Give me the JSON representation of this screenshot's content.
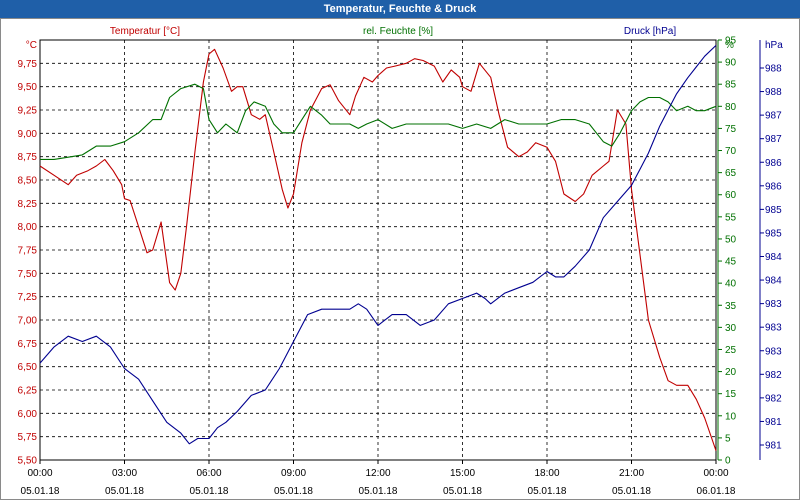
{
  "window": {
    "title": "Temperatur, Feuchte & Druck"
  },
  "chart_data": {
    "type": "line",
    "title": "Temperatur, Feuchte & Druck",
    "grid": true,
    "x": {
      "ticks": [
        {
          "time": "00:00",
          "date": "05.01.18"
        },
        {
          "time": "03:00",
          "date": "05.01.18"
        },
        {
          "time": "06:00",
          "date": "05.01.18"
        },
        {
          "time": "09:00",
          "date": "05.01.18"
        },
        {
          "time": "12:00",
          "date": "05.01.18"
        },
        {
          "time": "15:00",
          "date": "05.01.18"
        },
        {
          "time": "18:00",
          "date": "05.01.18"
        },
        {
          "time": "21:00",
          "date": "05.01.18"
        },
        {
          "time": "00:00",
          "date": "06.01.18"
        }
      ],
      "range_hours": [
        0,
        24
      ]
    },
    "axes": {
      "temperature": {
        "label": "Temperatur [°C]",
        "unit": "°C",
        "color": "#c00000",
        "range": [
          5.5,
          10.0
        ],
        "tick_labels": [
          "5,50",
          "5,75",
          "6,00",
          "6,25",
          "6,50",
          "6,75",
          "7,00",
          "7,25",
          "7,50",
          "7,75",
          "8,00",
          "8,25",
          "8,50",
          "8,75",
          "9,00",
          "9,25",
          "9,50",
          "9,75"
        ]
      },
      "humidity": {
        "label": "rel. Feuchte [%]",
        "unit": "%",
        "color": "#007000",
        "range": [
          0,
          95
        ],
        "tick_labels": [
          "0",
          "5",
          "10",
          "15",
          "20",
          "25",
          "30",
          "35",
          "40",
          "45",
          "50",
          "55",
          "60",
          "65",
          "70",
          "75",
          "80",
          "85",
          "90",
          "95"
        ]
      },
      "pressure": {
        "label": "Druck [hPa]",
        "unit": "hPa",
        "color": "#000090",
        "range": [
          980.5,
          988.3
        ],
        "tick_labels": [
          "981",
          "981",
          "982",
          "982",
          "983",
          "983",
          "983",
          "984",
          "984",
          "985",
          "985",
          "986",
          "986",
          "987",
          "987",
          "988",
          "988"
        ]
      }
    },
    "series": [
      {
        "name": "Temperatur [°C]",
        "axis": "temperature",
        "color": "#c00000",
        "x_hours": [
          0,
          0.5,
          1,
          1.3,
          1.7,
          2,
          2.3,
          2.6,
          2.9,
          3,
          3.2,
          3.5,
          3.8,
          4,
          4.3,
          4.6,
          4.8,
          5,
          5.2,
          5.5,
          5.8,
          6,
          6.2,
          6.5,
          6.8,
          7,
          7.2,
          7.5,
          7.8,
          8,
          8.3,
          8.6,
          8.8,
          9,
          9.3,
          9.6,
          10,
          10.3,
          10.6,
          11,
          11.2,
          11.5,
          11.8,
          12,
          12.3,
          12.6,
          13,
          13.3,
          13.6,
          14,
          14.3,
          14.6,
          14.9,
          15,
          15.3,
          15.6,
          16,
          16.3,
          16.6,
          17,
          17.3,
          17.6,
          18,
          18.3,
          18.6,
          19,
          19.3,
          19.6,
          20,
          20.2,
          20.5,
          20.8,
          21,
          21.3,
          21.6,
          22,
          22.3,
          22.6,
          23,
          23.3,
          23.6,
          24
        ],
        "values": [
          8.65,
          8.55,
          8.45,
          8.55,
          8.6,
          8.65,
          8.72,
          8.6,
          8.45,
          8.3,
          8.28,
          8.0,
          7.72,
          7.75,
          8.05,
          7.4,
          7.32,
          7.5,
          8.0,
          8.8,
          9.55,
          9.85,
          9.9,
          9.7,
          9.45,
          9.5,
          9.5,
          9.2,
          9.15,
          9.2,
          8.8,
          8.4,
          8.2,
          8.35,
          8.9,
          9.25,
          9.48,
          9.52,
          9.35,
          9.2,
          9.4,
          9.6,
          9.55,
          9.62,
          9.7,
          9.72,
          9.75,
          9.8,
          9.78,
          9.72,
          9.55,
          9.68,
          9.6,
          9.5,
          9.45,
          9.75,
          9.6,
          9.2,
          8.85,
          8.75,
          8.8,
          8.9,
          8.85,
          8.7,
          8.35,
          8.27,
          8.35,
          8.55,
          8.65,
          8.7,
          9.25,
          9.1,
          8.4,
          7.7,
          7.0,
          6.6,
          6.35,
          6.3,
          6.3,
          6.15,
          5.95,
          5.6
        ]
      },
      {
        "name": "rel. Feuchte [%]",
        "axis": "humidity",
        "color": "#007000",
        "x_hours": [
          0,
          0.5,
          1,
          1.5,
          2,
          2.5,
          3,
          3.5,
          4,
          4.3,
          4.6,
          5,
          5.5,
          5.8,
          6,
          6.3,
          6.6,
          7,
          7.3,
          7.6,
          8,
          8.3,
          8.6,
          9,
          9.3,
          9.6,
          10,
          10.3,
          10.6,
          11,
          11.3,
          11.6,
          12,
          12.5,
          13,
          13.5,
          14,
          14.5,
          15,
          15.5,
          16,
          16.5,
          17,
          17.5,
          18,
          18.5,
          19,
          19.5,
          20,
          20.3,
          20.6,
          21,
          21.3,
          21.6,
          22,
          22.3,
          22.6,
          23,
          23.3,
          23.6,
          24
        ],
        "values": [
          68,
          68,
          68.5,
          69,
          71,
          71,
          72,
          74,
          77,
          77,
          82,
          84,
          85,
          84,
          77,
          74,
          76,
          74,
          79,
          81,
          80,
          76,
          74,
          74,
          77,
          80,
          78,
          76,
          76,
          76,
          75,
          76,
          77,
          75,
          76,
          76,
          76,
          76,
          75,
          76,
          75,
          77,
          76,
          76,
          76,
          77,
          77,
          76,
          72,
          71,
          74,
          79,
          81,
          82,
          82,
          81,
          79,
          80,
          79,
          79,
          80
        ]
      },
      {
        "name": "Druck [hPa]",
        "axis": "pressure",
        "color": "#000090",
        "x_hours": [
          0,
          0.5,
          1,
          1.5,
          2,
          2.5,
          3,
          3.5,
          4,
          4.5,
          5,
          5.3,
          5.6,
          6,
          6.3,
          6.6,
          7,
          7.5,
          8,
          8.5,
          9,
          9.5,
          10,
          10.5,
          11,
          11.3,
          11.6,
          12,
          12.5,
          13,
          13.5,
          14,
          14.5,
          15,
          15.5,
          15.8,
          16,
          16.5,
          17,
          17.5,
          18,
          18.3,
          18.6,
          19,
          19.5,
          20,
          20.5,
          21,
          21.3,
          21.6,
          22,
          22.3,
          22.6,
          23,
          23.3,
          23.6,
          24
        ],
        "values": [
          982.3,
          982.6,
          982.8,
          982.7,
          982.8,
          982.6,
          982.2,
          982.0,
          981.6,
          981.2,
          981.0,
          980.8,
          980.9,
          980.9,
          981.1,
          981.2,
          981.4,
          981.7,
          981.8,
          982.2,
          982.7,
          983.2,
          983.3,
          983.3,
          983.3,
          983.4,
          983.3,
          983.0,
          983.2,
          983.2,
          983.0,
          983.1,
          983.4,
          983.5,
          983.6,
          983.5,
          983.4,
          983.6,
          983.7,
          983.8,
          984.0,
          983.9,
          983.9,
          984.1,
          984.4,
          985.0,
          985.3,
          985.6,
          985.9,
          986.2,
          986.7,
          987.0,
          987.3,
          987.6,
          987.8,
          988.0,
          988.2
        ]
      }
    ]
  }
}
